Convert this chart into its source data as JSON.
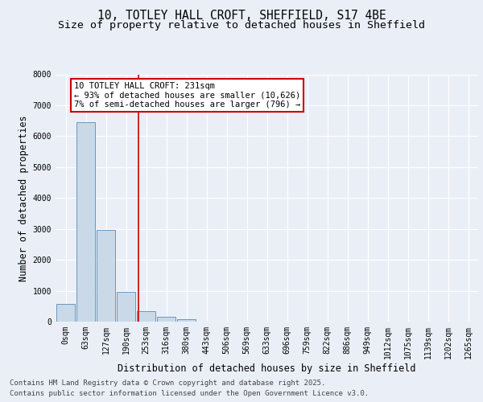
{
  "title_line1": "10, TOTLEY HALL CROFT, SHEFFIELD, S17 4BE",
  "title_line2": "Size of property relative to detached houses in Sheffield",
  "xlabel": "Distribution of detached houses by size in Sheffield",
  "ylabel": "Number of detached properties",
  "bar_labels": [
    "0sqm",
    "63sqm",
    "127sqm",
    "190sqm",
    "253sqm",
    "316sqm",
    "380sqm",
    "443sqm",
    "506sqm",
    "569sqm",
    "633sqm",
    "696sqm",
    "759sqm",
    "822sqm",
    "886sqm",
    "949sqm",
    "1012sqm",
    "1075sqm",
    "1139sqm",
    "1202sqm",
    "1265sqm"
  ],
  "bar_values": [
    580,
    6450,
    2970,
    960,
    350,
    145,
    70,
    0,
    0,
    0,
    0,
    0,
    0,
    0,
    0,
    0,
    0,
    0,
    0,
    0,
    0
  ],
  "bar_color": "#c9d9e8",
  "bar_edge_color": "#5a8ab5",
  "vline_x": 3.62,
  "vline_color": "#cc0000",
  "annotation_text": "10 TOTLEY HALL CROFT: 231sqm\n← 93% of detached houses are smaller (10,626)\n7% of semi-detached houses are larger (796) →",
  "annotation_box_color": "#cc0000",
  "ylim": [
    0,
    8000
  ],
  "yticks": [
    0,
    1000,
    2000,
    3000,
    4000,
    5000,
    6000,
    7000,
    8000
  ],
  "bg_color": "#eaeff7",
  "plot_bg_color": "#eaeff7",
  "footer_line1": "Contains HM Land Registry data © Crown copyright and database right 2025.",
  "footer_line2": "Contains public sector information licensed under the Open Government Licence v3.0.",
  "grid_color": "#ffffff",
  "title_fontsize": 10.5,
  "subtitle_fontsize": 9.5,
  "axis_label_fontsize": 8.5,
  "tick_fontsize": 7,
  "annotation_fontsize": 7.5,
  "footer_fontsize": 6.5
}
